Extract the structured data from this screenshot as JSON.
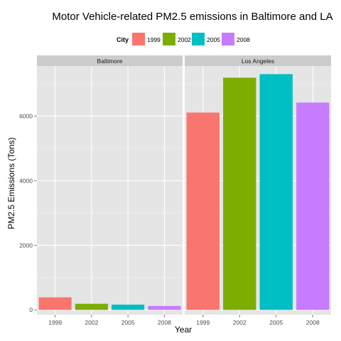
{
  "chart_data": {
    "type": "bar",
    "title": "Motor Vehicle-related PM2.5 emissions in Baltimore and LA",
    "xlabel": "Year",
    "ylabel": "PM2.5 Emissions (Tons)",
    "ylim": [
      -150,
      7550
    ],
    "yticks": [
      0,
      2000,
      4000,
      6000
    ],
    "legend": {
      "title": "City",
      "position": "top",
      "entries": [
        "1999",
        "2002",
        "2005",
        "2008"
      ],
      "colors": [
        "#f8766d",
        "#7cae00",
        "#00bfc4",
        "#c77cff"
      ]
    },
    "categories": [
      "1999",
      "2002",
      "2005",
      "2008"
    ],
    "facets": [
      {
        "name": "Baltimore",
        "values": [
          389,
          189,
          163,
          122
        ]
      },
      {
        "name": "Los Angeles",
        "values": [
          6110,
          7190,
          7300,
          6420
        ]
      }
    ]
  }
}
